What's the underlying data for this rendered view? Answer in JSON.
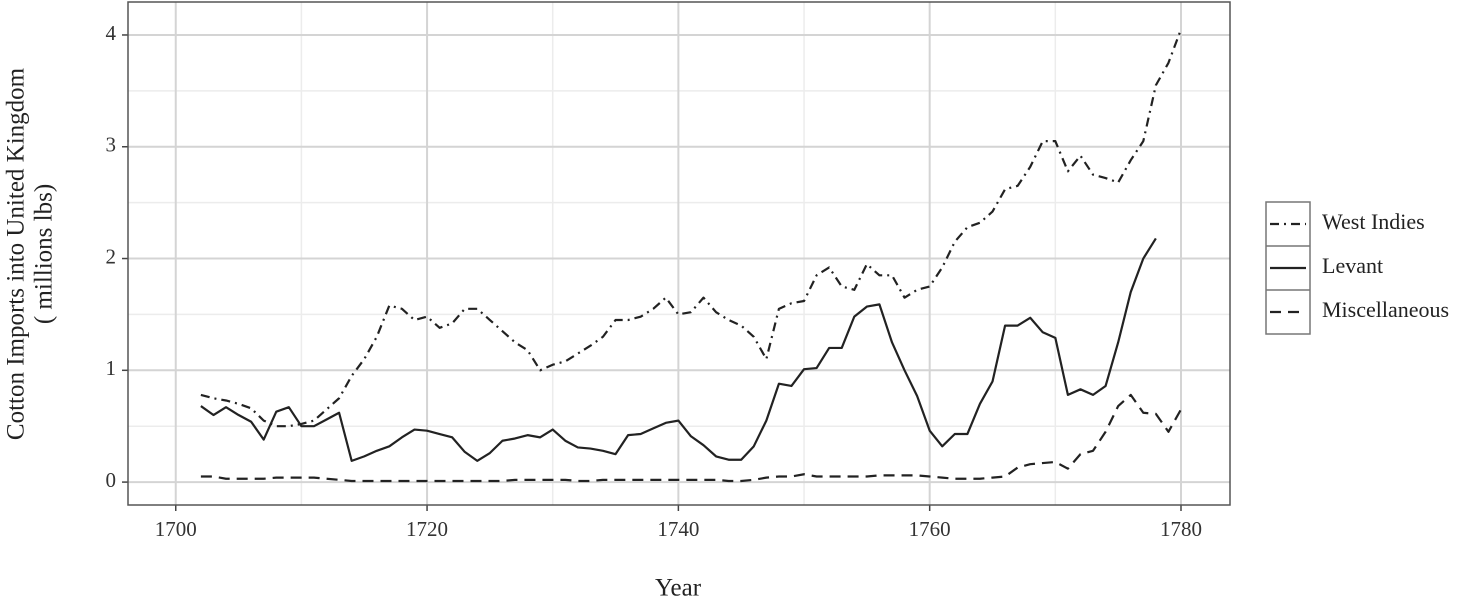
{
  "chart_data": {
    "type": "line",
    "xlabel": "Year",
    "ylabel": [
      "Cotton Imports into United Kingdom",
      "( millions lbs)"
    ],
    "x": [
      1702,
      1703,
      1704,
      1705,
      1706,
      1707,
      1708,
      1709,
      1710,
      1711,
      1712,
      1713,
      1714,
      1715,
      1716,
      1717,
      1718,
      1719,
      1720,
      1721,
      1722,
      1723,
      1724,
      1725,
      1726,
      1727,
      1728,
      1729,
      1730,
      1731,
      1732,
      1733,
      1734,
      1735,
      1736,
      1737,
      1738,
      1739,
      1740,
      1741,
      1742,
      1743,
      1744,
      1745,
      1746,
      1747,
      1748,
      1749,
      1750,
      1751,
      1752,
      1753,
      1754,
      1755,
      1756,
      1757,
      1758,
      1759,
      1760,
      1761,
      1762,
      1763,
      1764,
      1765,
      1766,
      1767,
      1768,
      1769,
      1770,
      1771,
      1772,
      1773,
      1774,
      1775,
      1776,
      1777,
      1778,
      1779,
      1780
    ],
    "series": [
      {
        "name": "West Indies",
        "color": "#222222",
        "dash": "9,5,2,5",
        "values": [
          0.78,
          0.75,
          0.73,
          0.7,
          0.66,
          0.55,
          0.5,
          0.5,
          0.52,
          0.55,
          0.65,
          0.75,
          0.95,
          1.1,
          1.3,
          1.58,
          1.55,
          1.45,
          1.48,
          1.38,
          1.42,
          1.55,
          1.55,
          1.45,
          1.35,
          1.25,
          1.18,
          1.0,
          1.05,
          1.08,
          1.15,
          1.22,
          1.3,
          1.45,
          1.45,
          1.48,
          1.55,
          1.65,
          1.5,
          1.52,
          1.65,
          1.52,
          1.45,
          1.4,
          1.3,
          1.1,
          1.55,
          1.6,
          1.62,
          1.85,
          1.92,
          1.75,
          1.72,
          1.95,
          1.85,
          1.85,
          1.65,
          1.72,
          1.75,
          1.92,
          2.15,
          2.28,
          2.32,
          2.42,
          2.62,
          2.65,
          2.82,
          3.05,
          3.05,
          2.78,
          2.92,
          2.75,
          2.72,
          2.68,
          2.88,
          3.05,
          3.55,
          3.75,
          4.05
        ]
      },
      {
        "name": "Levant",
        "color": "#222222",
        "dash": "none",
        "values": [
          0.68,
          0.6,
          0.67,
          0.6,
          0.54,
          0.38,
          0.63,
          0.67,
          0.5,
          0.5,
          0.56,
          0.62,
          0.19,
          0.23,
          0.28,
          0.32,
          0.4,
          0.47,
          0.46,
          0.43,
          0.4,
          0.27,
          0.19,
          0.26,
          0.37,
          0.39,
          0.42,
          0.4,
          0.47,
          0.37,
          0.31,
          0.3,
          0.28,
          0.25,
          0.42,
          0.43,
          0.48,
          0.53,
          0.55,
          0.41,
          0.33,
          0.23,
          0.2,
          0.2,
          0.32,
          0.55,
          0.88,
          0.86,
          1.01,
          1.02,
          1.2,
          1.2,
          1.48,
          1.57,
          1.59,
          1.25,
          1.0,
          0.77,
          0.46,
          0.32,
          0.43,
          0.43,
          0.7,
          0.9,
          1.4,
          1.4,
          1.47,
          1.34,
          1.29,
          0.78,
          0.83,
          0.78,
          0.86,
          1.25,
          1.7,
          2.0,
          2.18,
          null,
          null
        ]
      },
      {
        "name": "Miscellaneous",
        "color": "#222222",
        "dash": "11,7",
        "values": [
          0.05,
          0.05,
          0.03,
          0.03,
          0.03,
          0.03,
          0.04,
          0.04,
          0.04,
          0.04,
          0.03,
          0.02,
          0.01,
          0.01,
          0.01,
          0.01,
          0.01,
          0.01,
          0.01,
          0.01,
          0.01,
          0.01,
          0.01,
          0.01,
          0.01,
          0.02,
          0.02,
          0.02,
          0.02,
          0.02,
          0.01,
          0.01,
          0.02,
          0.02,
          0.02,
          0.02,
          0.02,
          0.02,
          0.02,
          0.02,
          0.02,
          0.02,
          0.01,
          0.01,
          0.02,
          0.04,
          0.05,
          0.05,
          0.07,
          0.05,
          0.05,
          0.05,
          0.05,
          0.05,
          0.06,
          0.06,
          0.06,
          0.06,
          0.05,
          0.04,
          0.03,
          0.03,
          0.03,
          0.04,
          0.05,
          0.13,
          0.16,
          0.17,
          0.18,
          0.12,
          0.25,
          0.28,
          0.45,
          0.68,
          0.78,
          0.62,
          0.61,
          0.45,
          0.65
        ]
      }
    ],
    "xlim": [
      1696.2,
      1783.9
    ],
    "ylim": [
      -0.205,
      4.295
    ],
    "xticks": [
      1700,
      1720,
      1740,
      1760,
      1780
    ],
    "yticks": [
      0,
      1,
      2,
      3,
      4
    ],
    "xminor": [
      1710,
      1730,
      1750,
      1770
    ],
    "yminor": [
      0.5,
      1.5,
      2.5,
      3.5
    ],
    "grid": true,
    "legend": "right"
  }
}
